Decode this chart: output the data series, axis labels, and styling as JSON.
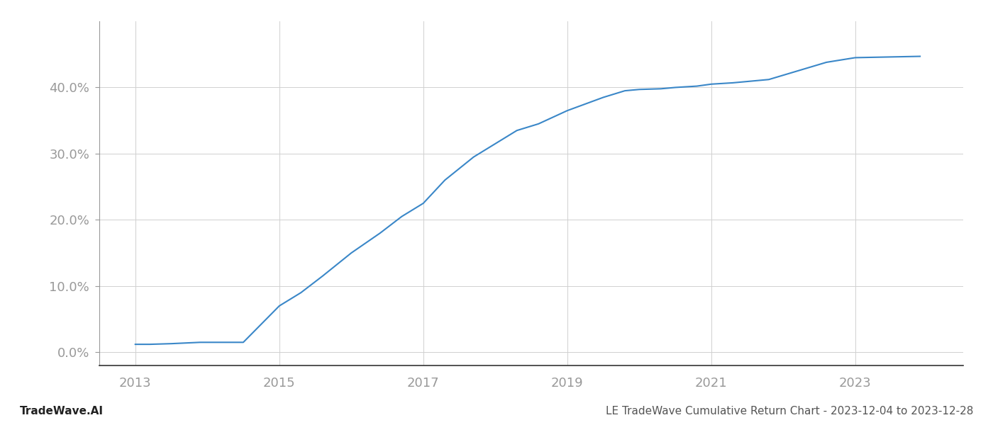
{
  "x_years": [
    2013.0,
    2013.2,
    2013.5,
    2013.9,
    2014.5,
    2015.0,
    2015.3,
    2015.6,
    2016.0,
    2016.4,
    2016.7,
    2017.0,
    2017.3,
    2017.7,
    2018.0,
    2018.3,
    2018.6,
    2019.0,
    2019.5,
    2019.8,
    2020.0,
    2020.3,
    2020.5,
    2020.8,
    2021.0,
    2021.3,
    2021.8,
    2022.2,
    2022.6,
    2023.0,
    2023.9
  ],
  "y_values": [
    1.2,
    1.2,
    1.3,
    1.5,
    1.5,
    7.0,
    9.0,
    11.5,
    15.0,
    18.0,
    20.5,
    22.5,
    26.0,
    29.5,
    31.5,
    33.5,
    34.5,
    36.5,
    38.5,
    39.5,
    39.7,
    39.8,
    40.0,
    40.2,
    40.5,
    40.7,
    41.2,
    42.5,
    43.8,
    44.5,
    44.7
  ],
  "line_color": "#3a87c8",
  "line_width": 1.5,
  "background_color": "#ffffff",
  "grid_color": "#d0d0d0",
  "xtick_labels": [
    "2013",
    "2015",
    "2017",
    "2019",
    "2021",
    "2023"
  ],
  "xtick_positions": [
    2013,
    2015,
    2017,
    2019,
    2021,
    2023
  ],
  "ytick_labels": [
    "0.0%",
    "10.0%",
    "20.0%",
    "30.0%",
    "40.0%"
  ],
  "ytick_positions": [
    0,
    10,
    20,
    30,
    40
  ],
  "xlim": [
    2012.5,
    2024.5
  ],
  "ylim": [
    -2,
    50
  ],
  "footer_left": "TradeWave.AI",
  "footer_right": "LE TradeWave Cumulative Return Chart - 2023-12-04 to 2023-12-28",
  "tick_color": "#999999",
  "footer_fontsize": 11
}
